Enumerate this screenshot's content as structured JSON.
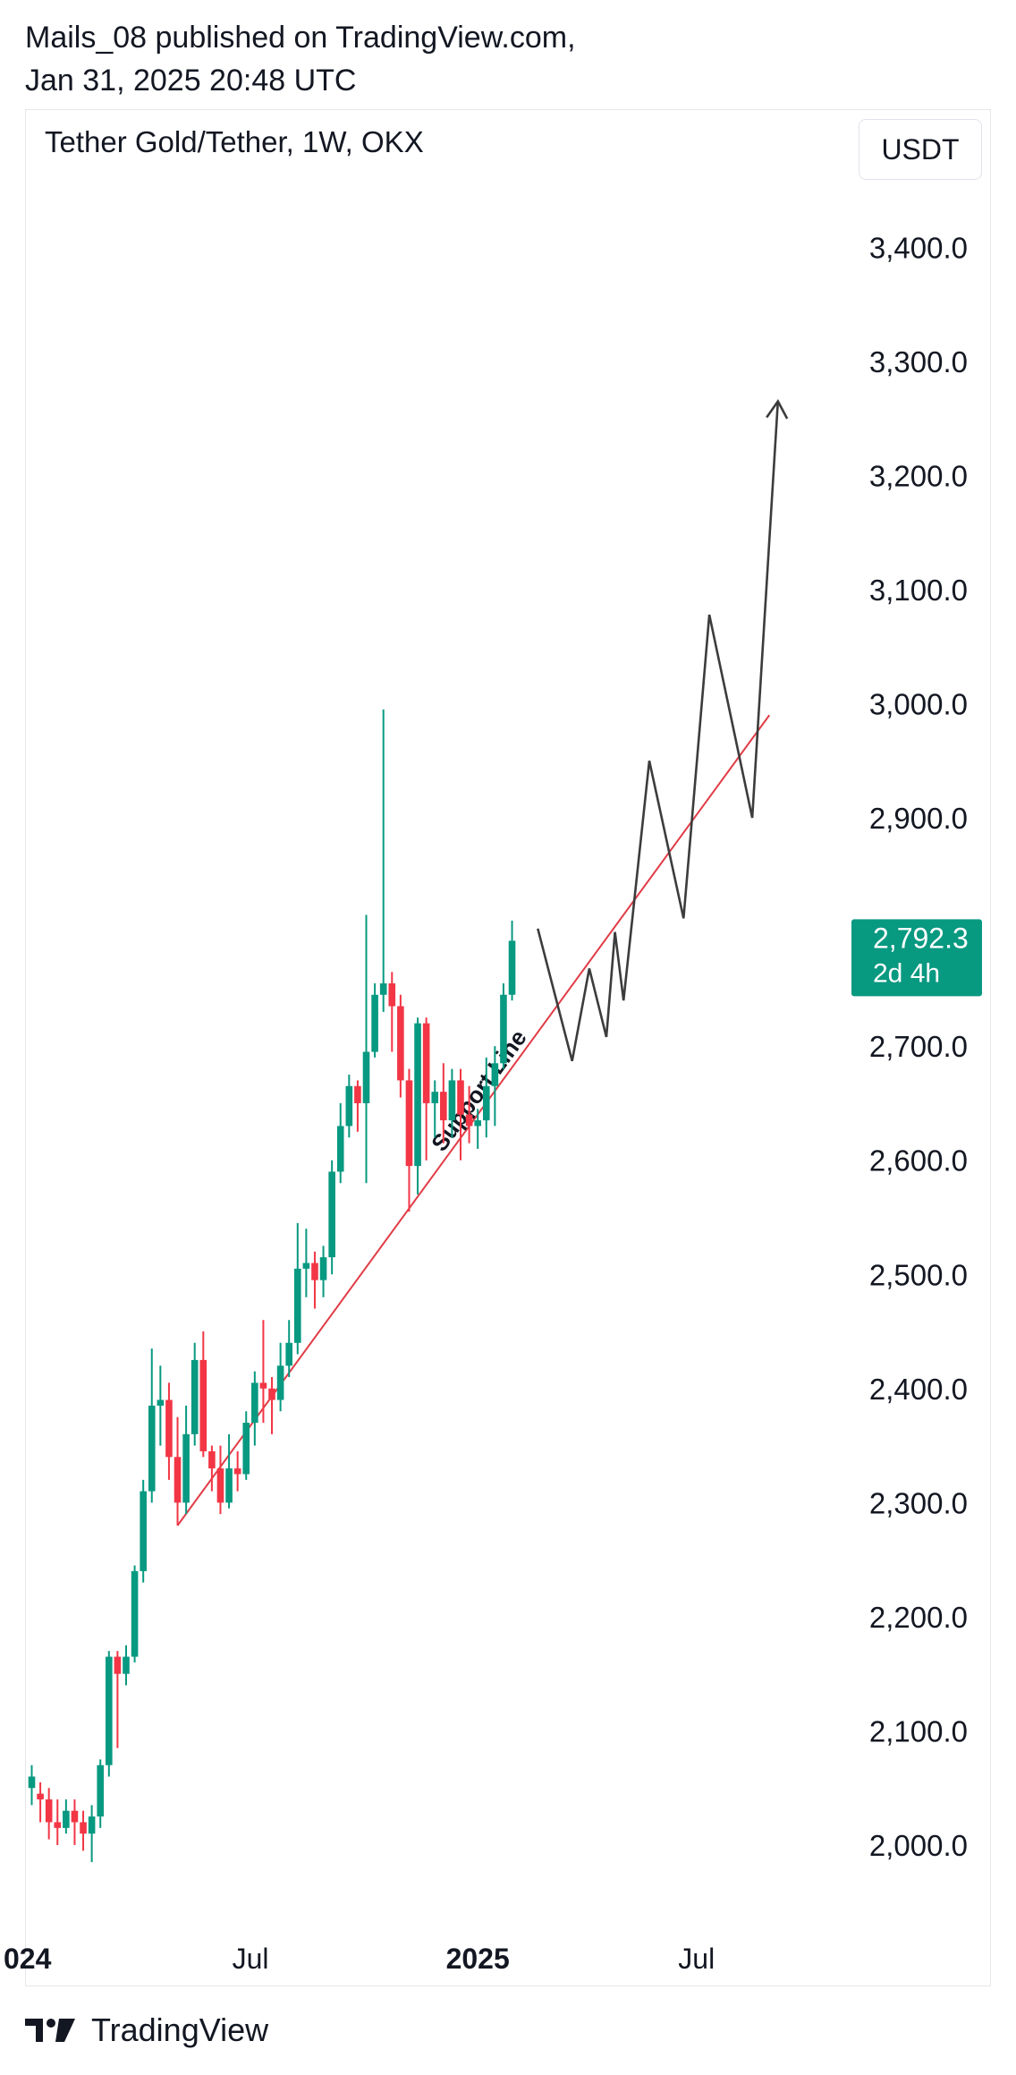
{
  "header": {
    "line1": "Mails_08 published on TradingView.com,",
    "line2": "Jan 31, 2025 20:48 UTC"
  },
  "symbol_title": "Tether Gold/Tether, 1W, OKX",
  "currency": "USDT",
  "footer": {
    "brand": "TradingView",
    "logo_icon": "tradingview-logo-icon"
  },
  "colors": {
    "up": "#089981",
    "down": "#f23645",
    "support": "#e03c46",
    "projection": "#3c3c3c",
    "price_badge": "#089981"
  },
  "chart_data": {
    "type": "candlestick",
    "title": "Tether Gold/Tether, 1W, OKX",
    "y_ticks": [
      "3,400.0",
      "3,300.0",
      "3,200.0",
      "3,100.0",
      "3,000.0",
      "2,900.0",
      "2,700.0",
      "2,600.0",
      "2,500.0",
      "2,400.0",
      "2,300.0",
      "2,200.0",
      "2,100.0",
      "2,000.0"
    ],
    "y_tick_values": [
      3400,
      3300,
      3200,
      3100,
      3000,
      2900,
      2700,
      2600,
      2500,
      2400,
      2300,
      2200,
      2100,
      2000
    ],
    "x_ticks": [
      {
        "label": "024",
        "week": -0.5,
        "bold": true
      },
      {
        "label": "Jul",
        "week": 25.5,
        "bold": false
      },
      {
        "label": "2025",
        "week": 52,
        "bold": true
      },
      {
        "label": "Jul",
        "week": 77.5,
        "bold": false
      }
    ],
    "current_price": {
      "value": 2792.3,
      "label": "2,792.3",
      "countdown": "2d 4h"
    },
    "candles": [
      [
        2050,
        2060,
        2035,
        2070
      ],
      [
        2045,
        2040,
        2020,
        2055
      ],
      [
        2040,
        2020,
        2005,
        2050
      ],
      [
        2020,
        2015,
        2000,
        2040
      ],
      [
        2015,
        2030,
        2010,
        2040
      ],
      [
        2030,
        2020,
        2000,
        2040
      ],
      [
        2020,
        2010,
        1995,
        2030
      ],
      [
        2010,
        2025,
        1985,
        2035
      ],
      [
        2025,
        2070,
        2015,
        2075
      ],
      [
        2070,
        2165,
        2060,
        2170
      ],
      [
        2165,
        2150,
        2085,
        2170
      ],
      [
        2150,
        2165,
        2140,
        2175
      ],
      [
        2165,
        2240,
        2160,
        2245
      ],
      [
        2240,
        2310,
        2230,
        2320
      ],
      [
        2310,
        2385,
        2300,
        2435
      ],
      [
        2385,
        2390,
        2350,
        2420
      ],
      [
        2390,
        2340,
        2320,
        2405
      ],
      [
        2340,
        2300,
        2280,
        2375
      ],
      [
        2300,
        2360,
        2290,
        2385
      ],
      [
        2360,
        2425,
        2350,
        2440
      ],
      [
        2425,
        2345,
        2340,
        2450
      ],
      [
        2345,
        2330,
        2310,
        2350
      ],
      [
        2330,
        2300,
        2290,
        2350
      ],
      [
        2300,
        2330,
        2295,
        2360
      ],
      [
        2330,
        2325,
        2310,
        2345
      ],
      [
        2325,
        2370,
        2320,
        2380
      ],
      [
        2370,
        2405,
        2350,
        2415
      ],
      [
        2405,
        2400,
        2370,
        2460
      ],
      [
        2400,
        2390,
        2360,
        2410
      ],
      [
        2390,
        2420,
        2380,
        2440
      ],
      [
        2420,
        2440,
        2410,
        2460
      ],
      [
        2440,
        2505,
        2430,
        2545
      ],
      [
        2505,
        2510,
        2480,
        2540
      ],
      [
        2510,
        2495,
        2470,
        2520
      ],
      [
        2495,
        2515,
        2480,
        2525
      ],
      [
        2515,
        2590,
        2500,
        2600
      ],
      [
        2590,
        2630,
        2580,
        2650
      ],
      [
        2630,
        2665,
        2620,
        2675
      ],
      [
        2665,
        2650,
        2625,
        2670
      ],
      [
        2650,
        2695,
        2580,
        2815
      ],
      [
        2695,
        2745,
        2690,
        2755
      ],
      [
        2745,
        2755,
        2730,
        2995
      ],
      [
        2755,
        2735,
        2695,
        2765
      ],
      [
        2735,
        2670,
        2655,
        2745
      ],
      [
        2670,
        2595,
        2555,
        2680
      ],
      [
        2595,
        2720,
        2570,
        2725
      ],
      [
        2720,
        2650,
        2600,
        2725
      ],
      [
        2650,
        2660,
        2620,
        2670
      ],
      [
        2660,
        2635,
        2615,
        2685
      ],
      [
        2635,
        2670,
        2620,
        2680
      ],
      [
        2670,
        2640,
        2600,
        2680
      ],
      [
        2640,
        2630,
        2615,
        2665
      ],
      [
        2630,
        2635,
        2610,
        2645
      ],
      [
        2635,
        2665,
        2620,
        2690
      ],
      [
        2665,
        2685,
        2630,
        2700
      ],
      [
        2685,
        2745,
        2680,
        2755
      ],
      [
        2745,
        2792.3,
        2740,
        2810
      ]
    ],
    "support_line": [
      [
        17,
        2280
      ],
      [
        86,
        2990
      ]
    ],
    "support_label": "Support Line",
    "projection_path": [
      [
        59,
        2803
      ],
      [
        63,
        2687
      ],
      [
        65,
        2768
      ],
      [
        67,
        2708
      ],
      [
        68,
        2800
      ],
      [
        69,
        2740
      ],
      [
        72,
        2950
      ],
      [
        76,
        2812
      ],
      [
        79,
        3078
      ],
      [
        84,
        2900
      ],
      [
        87,
        3265
      ]
    ]
  }
}
